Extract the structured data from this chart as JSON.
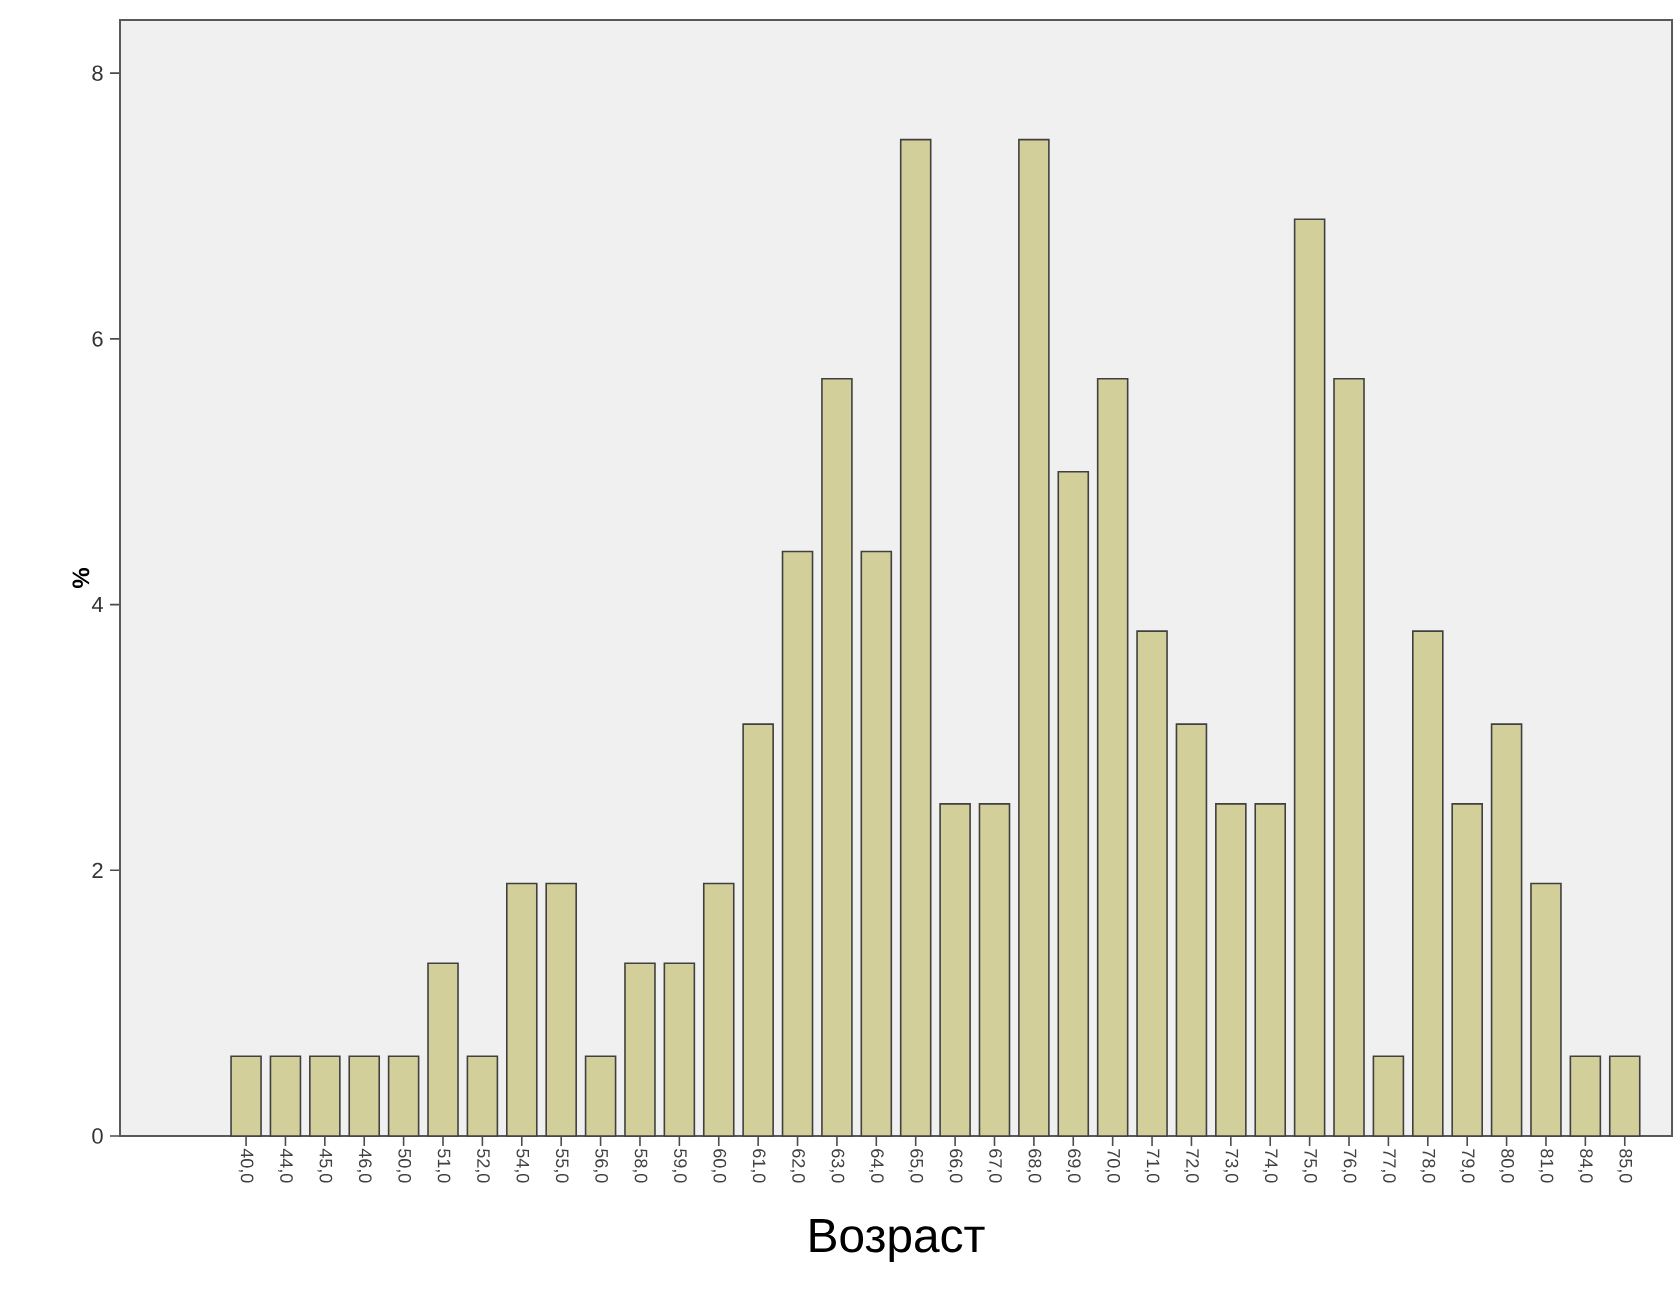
{
  "chart_data": {
    "type": "bar",
    "xlabel": "Возраст",
    "ylabel": "%",
    "categories": [
      "40,0",
      "44,0",
      "45,0",
      "46,0",
      "50,0",
      "51,0",
      "52,0",
      "54,0",
      "55,0",
      "56,0",
      "58,0",
      "59,0",
      "60,0",
      "61,0",
      "62,0",
      "63,0",
      "64,0",
      "65,0",
      "66,0",
      "67,0",
      "68,0",
      "69,0",
      "70,0",
      "71,0",
      "72,0",
      "73,0",
      "74,0",
      "75,0",
      "76,0",
      "77,0",
      "78,0",
      "79,0",
      "80,0",
      "81,0",
      "84,0",
      "85,0"
    ],
    "values": [
      0.6,
      0.6,
      0.6,
      0.6,
      0.6,
      1.3,
      0.6,
      1.9,
      1.9,
      0.6,
      1.3,
      1.3,
      1.9,
      3.1,
      4.4,
      5.7,
      4.4,
      7.5,
      2.5,
      2.5,
      7.5,
      5.0,
      5.7,
      3.8,
      3.1,
      2.5,
      2.5,
      6.9,
      5.7,
      0.6,
      3.8,
      2.5,
      3.1,
      1.9,
      0.6,
      0.6
    ],
    "color": "#d3cf9a",
    "ylim": [
      0,
      8.4
    ],
    "yticks": [
      0,
      2,
      4,
      6,
      8
    ],
    "grid": false
  }
}
